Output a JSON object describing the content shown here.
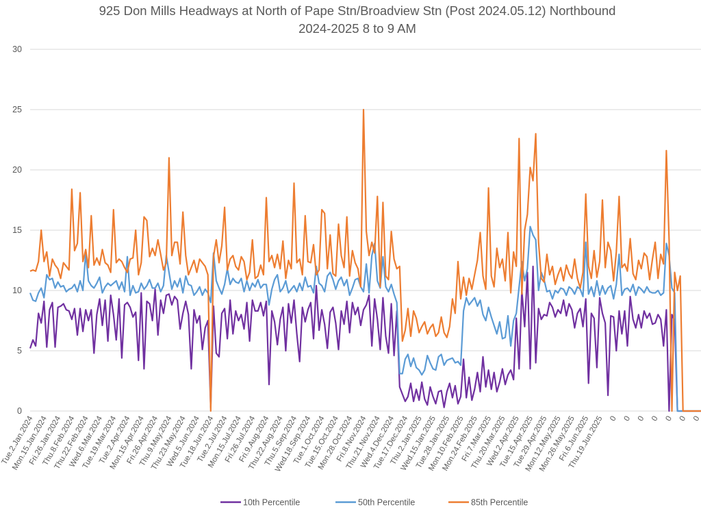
{
  "chart_data": {
    "type": "line",
    "title": "925 Don Mills Headways at North of Pape Stn/Broadview Stn (Post 2024.05.12) Northbound",
    "subtitle": "2024-2025 8 to 9 AM",
    "xlabel": "",
    "ylabel": "",
    "ylim": [
      0,
      30
    ],
    "yticks": [
      0,
      5,
      10,
      15,
      20,
      25,
      30
    ],
    "grid": true,
    "legend_position": "bottom",
    "samples_per_label": 5,
    "x_tick_labels": [
      "Tue.2.Jan.2024",
      "Mon.15.Jan.2024",
      "Fri.26.Jan.2024",
      "Thu.8.Feb.2024",
      "Thu.22.Feb.2024",
      "Wed.6.Mar.2024",
      "Tue.19.Mar.2024",
      "Tue.2.Apr.2024",
      "Mon.15.Apr.2024",
      "Fri.26.Apr.2024",
      "Thu.9.May.2024",
      "Thu.23.May.2024",
      "Wed.5.Jun.2024",
      "Tue.18.Jun.2024",
      "Tue.2.Jul.2024",
      "Mon.15.Jul.2024",
      "Fri.26.Jul.2024",
      "Fri.9.Aug.2024",
      "Thu.22.Aug.2024",
      "Thu.5.Sep.2024",
      "Wed.18.Sep.2024",
      "Tue.1.Oct.2024",
      "Tue.15.Oct.2024",
      "Mon.28.Oct.2024",
      "Fri.8.Nov.2024",
      "Thu.21.Nov.2024",
      "Wed.4.Dec.2024",
      "Tue.17.Dec.2024",
      "Thu.2.Jan.2025",
      "Wed.15.Jan.2025",
      "Tue.28.Jan.2025",
      "Mon.10.Feb.2025",
      "Mon.24.Feb.2025",
      "Fri.7.Mar.2025",
      "Thu.20.Mar.2025",
      "Wed.2.Apr.2025",
      "Tue.15.Apr.2025",
      "Tue.29.Apr.2025",
      "Mon.12.May.2025",
      "Mon.26.May.2025",
      "Fri.6.Jun.2025",
      "Thu.19.Jun.2025",
      "0",
      "0",
      "0",
      "0",
      "0",
      "0",
      "0"
    ],
    "series": [
      {
        "name": "10th Percentile",
        "color": "#7030a0",
        "values": [
          5.2,
          5.9,
          5.4,
          8.1,
          7.3,
          9.1,
          5.3,
          8.4,
          9.0,
          5.3,
          8.6,
          8.7,
          8.9,
          8.4,
          8.3,
          7.6,
          8.5,
          6.3,
          8.5,
          6.6,
          8.4,
          7.5,
          8.4,
          4.8,
          8.0,
          9.3,
          7.1,
          9.2,
          5.8,
          9.6,
          8.0,
          5.9,
          9.3,
          4.4,
          8.8,
          9.0,
          8.6,
          7.8,
          8.2,
          4.2,
          9.8,
          3.5,
          9.1,
          8.9,
          7.5,
          10.1,
          6.3,
          9.2,
          8.1,
          9.6,
          9.7,
          8.8,
          9.5,
          9.2,
          6.8,
          8.1,
          9.1,
          8.0,
          3.5,
          8.4,
          7.3,
          7.9,
          5.1,
          6.9,
          7.5,
          0.3,
          8.7,
          4.8,
          4.5,
          8.1,
          8.5,
          6.0,
          9.2,
          6.4,
          8.3,
          7.5,
          8.0,
          6.8,
          9.0,
          5.8,
          9.2,
          8.3,
          8.3,
          9.0,
          7.9,
          9.1,
          2.2,
          8.3,
          7.4,
          5.5,
          7.6,
          8.6,
          5.0,
          8.9,
          7.3,
          9.2,
          6.4,
          4.1,
          8.6,
          7.4,
          8.4,
          9.0,
          6.0,
          10.4,
          6.7,
          8.4,
          7.2,
          5.2,
          8.2,
          8.6,
          7.3,
          5.1,
          8.3,
          7.2,
          9.1,
          6.5,
          9.0,
          8.0,
          8.6,
          7.1,
          8.4,
          8.8,
          9.6,
          5.4,
          9.3,
          7.6,
          5.1,
          9.4,
          6.2,
          4.8,
          8.9,
          4.6,
          8.3,
          2.0,
          1.4,
          0.8,
          1.2,
          2.3,
          0.8,
          1.8,
          0.9,
          2.4,
          1.0,
          0.5,
          2.0,
          1.2,
          0.6,
          1.6,
          1.7,
          0.3,
          1.6,
          2.3,
          1.1,
          2.1,
          0.6,
          1.2,
          4.3,
          1.1,
          2.8,
          0.9,
          1.8,
          3.2,
          1.6,
          4.5,
          2.0,
          3.4,
          1.8,
          3.2,
          1.6,
          2.4,
          3.5,
          2.2,
          3.0,
          3.4,
          2.6,
          7.7,
          3.5,
          10.0,
          7.0,
          11.5,
          3.5,
          12.0,
          4.0,
          8.5,
          7.6,
          8.0,
          7.9,
          9.0,
          8.6,
          7.8,
          8.4,
          8.1,
          9.2,
          7.9,
          8.9,
          8.4,
          6.9,
          8.1,
          8.5,
          7.0,
          9.3,
          2.3,
          8.1,
          7.7,
          3.6,
          9.4,
          8.1,
          7.3,
          1.3,
          7.9,
          7.8,
          5.0,
          8.3,
          6.4,
          8.3,
          5.4,
          9.5,
          7.6,
          6.9,
          8.0,
          6.9,
          8.3,
          7.7,
          8.1,
          7.2,
          7.3,
          8.0,
          7.6,
          5.4,
          8.4,
          0.0,
          8.0,
          7.5,
          0,
          0,
          0,
          0,
          0,
          0,
          0,
          0,
          0,
          0,
          0,
          0,
          0,
          0,
          0,
          0,
          0,
          0,
          0,
          0,
          0,
          0,
          0,
          0,
          0,
          0,
          0,
          0,
          0,
          0,
          0,
          0
        ]
      },
      {
        "name": "50th Percentile",
        "color": "#5b9bd5",
        "values": [
          9.8,
          9.2,
          9.1,
          9.8,
          10.2,
          9.4,
          11.3,
          10.9,
          11.0,
          10.2,
          10.7,
          10.3,
          10.4,
          9.9,
          10.1,
          10.2,
          10.5,
          9.9,
          10.8,
          10.0,
          13.1,
          10.8,
          10.4,
          10.2,
          10.6,
          11.1,
          9.8,
          10.3,
          10.6,
          10.4,
          10.6,
          10.8,
          10.1,
          10.7,
          9.9,
          12.8,
          9.6,
          10.4,
          9.8,
          9.9,
          10.6,
          10.1,
          10.4,
          10.9,
          10.2,
          10.2,
          10.6,
          9.9,
          10.4,
          12.9,
          11.5,
          10.1,
          10.8,
          10.3,
          11.0,
          9.8,
          11.2,
          10.5,
          10.4,
          9.6,
          9.9,
          10.3,
          9.6,
          10.1,
          9.8,
          9.0,
          13.1,
          10.8,
          10.2,
          9.7,
          10.5,
          11.8,
          10.5,
          11.0,
          10.7,
          10.6,
          11.0,
          9.9,
          10.8,
          10.0,
          10.6,
          10.3,
          10.9,
          10.2,
          10.5,
          10.5,
          8.8,
          10.1,
          10.9,
          11.3,
          9.9,
          10.2,
          10.8,
          9.8,
          10.1,
          10.4,
          9.9,
          10.6,
          10.0,
          11.1,
          10.3,
          10.4,
          9.8,
          12.0,
          10.6,
          10.4,
          9.9,
          11.2,
          11.5,
          10.9,
          10.1,
          10.8,
          11.1,
          10.4,
          10.9,
          9.6,
          10.2,
          10.9,
          11.0,
          10.3,
          9.9,
          12.2,
          9.8,
          12.9,
          13.9,
          10.8,
          10.2,
          12.8,
          10.3,
          9.9,
          10.5,
          9.7,
          9.0,
          3.1,
          3.1,
          4.3,
          4.7,
          3.7,
          4.4,
          3.6,
          3.4,
          3.0,
          3.4,
          4.6,
          4.0,
          3.5,
          3.4,
          4.5,
          4.7,
          3.8,
          4.2,
          4.3,
          4.4,
          4.0,
          4.1,
          3.8,
          8.3,
          9.4,
          8.8,
          9.1,
          9.4,
          8.7,
          9.2,
          8.0,
          7.5,
          8.6,
          7.8,
          7.1,
          6.4,
          7.4,
          6.0,
          6.1,
          7.9,
          5.4,
          7.5,
          8.1,
          10.3,
          12.4,
          10.8,
          11.8,
          15.3,
          14.6,
          14.2,
          10.0,
          11.5,
          10.9,
          9.9,
          10.0,
          9.3,
          10.0,
          9.8,
          10.2,
          10.1,
          9.6,
          10.3,
          10.1,
          9.7,
          10.3,
          10.1,
          9.5,
          14.0,
          9.7,
          10.3,
          9.5,
          10.8,
          9.6,
          10.4,
          9.7,
          10.2,
          10.4,
          9.3,
          10.5,
          13.0,
          9.6,
          10.1,
          10.2,
          9.9,
          10.5,
          9.6,
          10.3,
          10.1,
          9.8,
          10.3,
          9.9,
          9.8,
          9.8,
          10.0,
          9.6,
          9.8,
          13.9,
          12.9,
          10.2,
          9.8,
          0,
          0,
          0,
          0,
          0,
          0,
          0,
          0,
          0,
          0,
          0,
          0,
          0,
          0,
          0,
          0,
          0,
          0,
          0,
          0,
          0,
          0,
          0,
          0,
          0,
          0,
          0,
          0,
          0,
          0,
          0,
          0
        ]
      },
      {
        "name": "85th Percentile",
        "color": "#ed7d31",
        "values": [
          11.6,
          11.7,
          11.6,
          12.4,
          15.0,
          12.4,
          13.2,
          11.2,
          12.6,
          12.1,
          11.8,
          11.0,
          12.3,
          12.0,
          11.7,
          18.4,
          13.3,
          13.9,
          18.1,
          12.4,
          13.4,
          11.9,
          16.2,
          12.1,
          12.7,
          12.1,
          13.4,
          12.3,
          12.1,
          11.5,
          16.7,
          12.3,
          12.6,
          12.4,
          11.9,
          11.5,
          12.6,
          12.7,
          15.0,
          11.3,
          12.3,
          16.1,
          15.8,
          12.8,
          13.5,
          12.9,
          14.2,
          13.0,
          11.7,
          12.3,
          21.0,
          12.9,
          14.0,
          14.0,
          12.2,
          16.5,
          12.9,
          11.3,
          11.9,
          12.5,
          11.5,
          12.6,
          12.3,
          12.0,
          11.3,
          0.0,
          12.8,
          14.2,
          12.3,
          13.7,
          16.9,
          11.7,
          12.6,
          12.9,
          12.0,
          11.7,
          12.8,
          12.4,
          10.9,
          11.5,
          14.2,
          11.0,
          11.2,
          12.1,
          11.3,
          17.7,
          12.4,
          12.9,
          11.9,
          13.0,
          11.8,
          14.1,
          11.0,
          12.5,
          11.8,
          18.9,
          12.3,
          12.6,
          11.3,
          16.2,
          12.4,
          12.3,
          13.8,
          11.3,
          11.7,
          16.7,
          16.4,
          11.8,
          14.6,
          11.4,
          11.2,
          15.5,
          12.9,
          11.9,
          16.1,
          11.2,
          13.3,
          12.3,
          11.8,
          10.3,
          25.0,
          14.9,
          12.9,
          14.0,
          13.1,
          17.8,
          10.3,
          17.3,
          11.2,
          10.9,
          14.9,
          12.6,
          11.8,
          12.0,
          5.8,
          6.7,
          8.5,
          6.2,
          8.3,
          7.7,
          6.5,
          7.0,
          7.4,
          6.4,
          6.9,
          7.2,
          6.2,
          6.5,
          7.8,
          6.5,
          6.1,
          7.0,
          9.3,
          8.1,
          12.4,
          9.3,
          11.1,
          9.6,
          11.0,
          10.1,
          11.3,
          12.5,
          14.8,
          11.2,
          10.1,
          18.5,
          11.2,
          10.3,
          13.5,
          11.9,
          12.6,
          10.8,
          14.8,
          9.8,
          13.2,
          12.0,
          22.6,
          9.7,
          15.0,
          16.3,
          20.2,
          19.1,
          23.0,
          14.0,
          11.0,
          10.7,
          13.0,
          11.3,
          12.0,
          10.5,
          11.3,
          11.9,
          10.8,
          12.1,
          11.4,
          11.0,
          12.6,
          11.0,
          10.2,
          11.5,
          18.0,
          12.0,
          11.0,
          13.3,
          11.1,
          12.4,
          17.5,
          11.9,
          14.0,
          13.3,
          10.8,
          13.2,
          17.8,
          11.9,
          12.2,
          11.6,
          14.3,
          11.4,
          10.9,
          12.5,
          11.8,
          13.1,
          12.8,
          10.9,
          12.6,
          14.0,
          11.0,
          13.0,
          12.2,
          21.6,
          14.2,
          0.0,
          11.5,
          10.0,
          11.2,
          0,
          0,
          0,
          0,
          0,
          0,
          0,
          0,
          0,
          0,
          0,
          0,
          0,
          0,
          0,
          0,
          0,
          0,
          0,
          0,
          0,
          0,
          0,
          0,
          0,
          0,
          0,
          0,
          0,
          0
        ]
      }
    ]
  }
}
